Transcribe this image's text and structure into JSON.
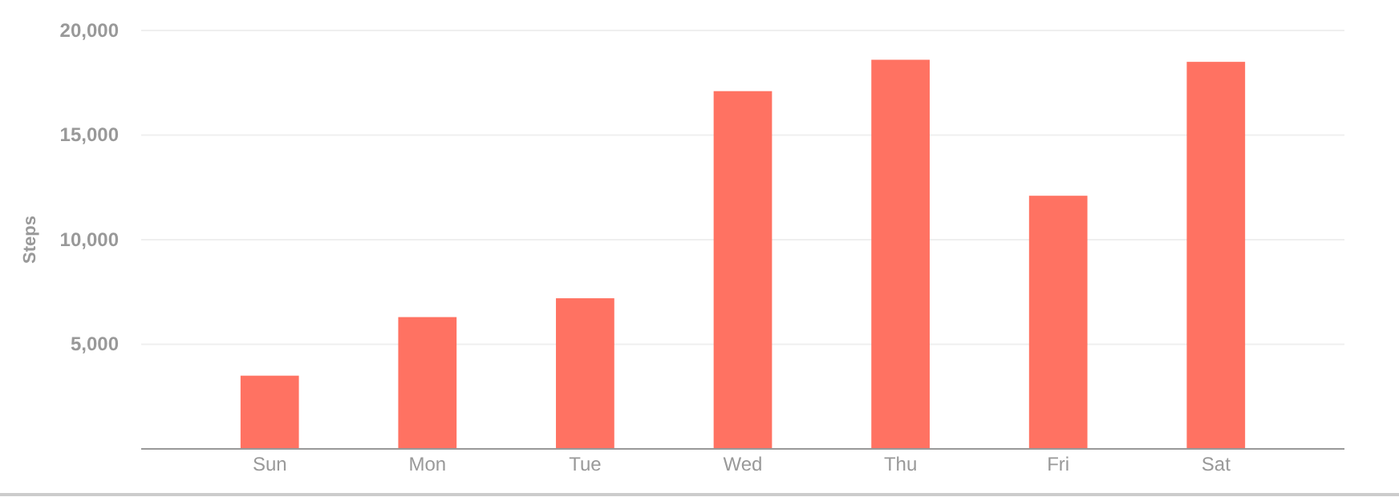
{
  "chart_data": {
    "type": "bar",
    "ylabel": "Steps",
    "categories": [
      "Sun",
      "Mon",
      "Tue",
      "Wed",
      "Thu",
      "Fri",
      "Sat"
    ],
    "values": [
      3500,
      6300,
      7200,
      17100,
      18600,
      12100,
      18500
    ],
    "color": "#ff7262",
    "ylim": [
      0,
      20000
    ],
    "yticks": [
      {
        "value": 5000,
        "label": "5,000"
      },
      {
        "value": 10000,
        "label": "10,000"
      },
      {
        "value": 15000,
        "label": "15,000"
      },
      {
        "value": 20000,
        "label": "20,000"
      }
    ],
    "grid": "y"
  }
}
